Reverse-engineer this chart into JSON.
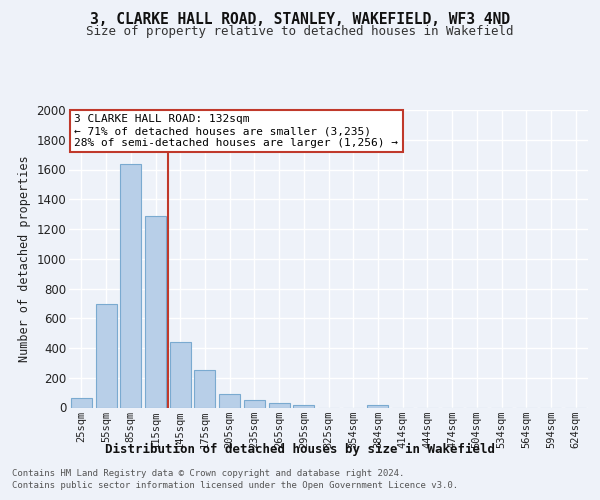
{
  "title": "3, CLARKE HALL ROAD, STANLEY, WAKEFIELD, WF3 4ND",
  "subtitle": "Size of property relative to detached houses in Wakefield",
  "xlabel": "Distribution of detached houses by size in Wakefield",
  "ylabel": "Number of detached properties",
  "categories": [
    "25sqm",
    "55sqm",
    "85sqm",
    "115sqm",
    "145sqm",
    "175sqm",
    "205sqm",
    "235sqm",
    "265sqm",
    "295sqm",
    "325sqm",
    "354sqm",
    "384sqm",
    "414sqm",
    "444sqm",
    "474sqm",
    "504sqm",
    "534sqm",
    "564sqm",
    "594sqm",
    "624sqm"
  ],
  "values": [
    65,
    695,
    1640,
    1290,
    440,
    255,
    90,
    50,
    30,
    20,
    0,
    0,
    15,
    0,
    0,
    0,
    0,
    0,
    0,
    0,
    0
  ],
  "bar_color": "#b8cfe8",
  "bar_edge_color": "#7aaad0",
  "ref_line_x": 3.5,
  "ref_line_color": "#c0392b",
  "annotation_line1": "3 CLARKE HALL ROAD: 132sqm",
  "annotation_line2": "← 71% of detached houses are smaller (3,235)",
  "annotation_line3": "28% of semi-detached houses are larger (1,256) →",
  "annotation_box_color": "#c0392b",
  "ylim": [
    0,
    2000
  ],
  "yticks": [
    0,
    200,
    400,
    600,
    800,
    1000,
    1200,
    1400,
    1600,
    1800,
    2000
  ],
  "footnote1": "Contains HM Land Registry data © Crown copyright and database right 2024.",
  "footnote2": "Contains public sector information licensed under the Open Government Licence v3.0.",
  "bg_color": "#eef2f9",
  "plot_bg_color": "#eef2f9",
  "grid_color": "#ffffff"
}
